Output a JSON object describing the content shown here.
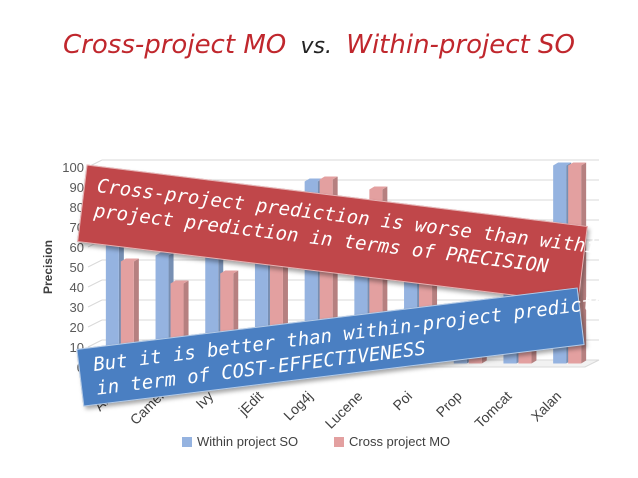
{
  "header": {
    "title_left": "Cross-project MO",
    "title_vs": "vs.",
    "title_right": "Within-project SO"
  },
  "chart_data": {
    "type": "bar",
    "categories": [
      "Ant",
      "Camel",
      "Ivy",
      "jEdit",
      "Log4j",
      "Lucene",
      "Poi",
      "Prop",
      "Tomcat",
      "Xalan"
    ],
    "series": [
      {
        "name": "Within project SO",
        "values": [
          68,
          54,
          73,
          65,
          91,
          62,
          55,
          8,
          48,
          99
        ]
      },
      {
        "name": "Cross project MO",
        "values": [
          51,
          40,
          45,
          72,
          92,
          87,
          64,
          8,
          38,
          99
        ]
      }
    ],
    "ylabel": "Precision",
    "xlabel": "",
    "ylim": [
      0,
      100
    ],
    "yticks": [
      0,
      10,
      20,
      30,
      40,
      50,
      60,
      70,
      80,
      90,
      100
    ],
    "grid": true,
    "legend": "bottom",
    "colors": [
      "#95b3e0",
      "#e3a0a0"
    ]
  },
  "annotations": {
    "red_line1": "Cross-project prediction is worse than within-",
    "red_line2": "project prediction in terms of PRECISION",
    "blue_line1": "But it is better than within-project predictors",
    "blue_line2": "in term of COST-EFFECTIVENESS"
  }
}
